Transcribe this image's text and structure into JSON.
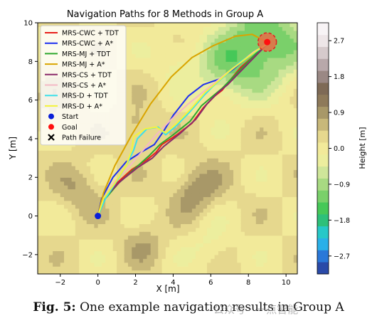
{
  "chart_data": {
    "type": "line",
    "title": "Navigation Paths for 8 Methods in Group A",
    "xlabel": "X [m]",
    "ylabel": "Y [m]",
    "xlim": [
      -3.2,
      10.6
    ],
    "ylim": [
      -3.0,
      10.0
    ],
    "xticks": [
      -2,
      0,
      2,
      4,
      6,
      8,
      10
    ],
    "yticks": [
      -2,
      0,
      2,
      4,
      6,
      8,
      10
    ],
    "grid": false,
    "legend_position": "top-left",
    "background": "contour-height-map",
    "series": [
      {
        "name": "MRS-CWC + TDT",
        "color": "#e8201c",
        "points": [
          [
            0,
            0
          ],
          [
            0.3,
            0.8
          ],
          [
            1.0,
            1.7
          ],
          [
            1.8,
            2.4
          ],
          [
            2.6,
            2.9
          ],
          [
            3.1,
            3.3
          ],
          [
            3.4,
            3.7
          ],
          [
            4.2,
            4.2
          ],
          [
            5.0,
            4.8
          ],
          [
            5.6,
            5.6
          ],
          [
            6.2,
            6.2
          ],
          [
            6.6,
            6.5
          ],
          [
            7.0,
            7.0
          ],
          [
            7.6,
            7.7
          ],
          [
            8.3,
            8.3
          ],
          [
            9.0,
            8.9
          ]
        ]
      },
      {
        "name": "MRS-CWC + A*",
        "color": "#1c2ff0",
        "points": [
          [
            0,
            0
          ],
          [
            0.2,
            0.9
          ],
          [
            0.8,
            2.0
          ],
          [
            1.5,
            2.8
          ],
          [
            2.3,
            3.3
          ],
          [
            3.0,
            3.7
          ],
          [
            3.5,
            4.4
          ],
          [
            4.0,
            5.2
          ],
          [
            4.8,
            6.2
          ],
          [
            5.6,
            6.8
          ],
          [
            6.5,
            7.1
          ],
          [
            7.2,
            7.6
          ],
          [
            7.9,
            8.2
          ],
          [
            8.5,
            8.6
          ],
          [
            9.0,
            8.9
          ]
        ]
      },
      {
        "name": "MRS-MJ + TDT",
        "color": "#2ea82e",
        "points": [
          [
            0,
            0
          ],
          [
            0.4,
            0.9
          ],
          [
            1.1,
            1.7
          ],
          [
            1.9,
            2.4
          ],
          [
            2.7,
            3.1
          ],
          [
            3.3,
            3.7
          ],
          [
            4.0,
            4.2
          ],
          [
            4.9,
            4.9
          ],
          [
            5.5,
            5.7
          ],
          [
            6.1,
            6.2
          ],
          [
            6.6,
            6.6
          ],
          [
            7.2,
            7.2
          ],
          [
            7.9,
            7.9
          ],
          [
            8.5,
            8.5
          ],
          [
            9.0,
            8.9
          ]
        ]
      },
      {
        "name": "MRS-MJ + A*",
        "color": "#d9a400",
        "points": [
          [
            0,
            0
          ],
          [
            0.3,
            1.2
          ],
          [
            0.9,
            2.6
          ],
          [
            1.8,
            4.2
          ],
          [
            2.8,
            5.8
          ],
          [
            3.9,
            7.2
          ],
          [
            5.0,
            8.2
          ],
          [
            6.1,
            8.8
          ],
          [
            7.3,
            9.3
          ],
          [
            8.2,
            9.4
          ],
          [
            9.0,
            9.0
          ]
        ]
      },
      {
        "name": "MRS-CS + TDT",
        "color": "#8a2a6a",
        "points": [
          [
            0,
            0
          ],
          [
            0.4,
            1.0
          ],
          [
            1.2,
            1.8
          ],
          [
            2.1,
            2.5
          ],
          [
            2.9,
            3.0
          ],
          [
            3.5,
            3.6
          ],
          [
            4.4,
            4.3
          ],
          [
            5.2,
            5.0
          ],
          [
            5.8,
            5.8
          ],
          [
            6.4,
            6.4
          ],
          [
            6.9,
            6.8
          ],
          [
            7.5,
            7.4
          ],
          [
            8.2,
            8.1
          ],
          [
            9.0,
            8.9
          ]
        ]
      },
      {
        "name": "MRS-CS + A*",
        "color": "#f4b8c4",
        "points": [
          [
            0,
            0
          ],
          [
            0.3,
            0.9
          ],
          [
            0.9,
            1.8
          ],
          [
            1.7,
            2.6
          ],
          [
            2.4,
            3.4
          ],
          [
            3.1,
            4.2
          ],
          [
            3.9,
            5.0
          ],
          [
            4.8,
            5.8
          ],
          [
            5.7,
            6.5
          ],
          [
            6.6,
            7.2
          ],
          [
            7.5,
            7.9
          ],
          [
            8.3,
            8.5
          ],
          [
            9.0,
            8.9
          ]
        ]
      },
      {
        "name": "MRS-D + TDT",
        "color": "#3ce0ea",
        "points": [
          [
            0,
            0
          ],
          [
            0.4,
            0.9
          ],
          [
            1.0,
            1.8
          ],
          [
            1.5,
            2.6
          ],
          [
            1.9,
            3.4
          ],
          [
            2.1,
            4.0
          ],
          [
            2.6,
            4.5
          ],
          [
            3.2,
            4.6
          ],
          [
            3.6,
            4.2
          ],
          [
            4.1,
            4.6
          ],
          [
            4.9,
            5.4
          ],
          [
            5.6,
            6.2
          ],
          [
            6.1,
            6.7
          ],
          [
            6.8,
            7.3
          ],
          [
            7.6,
            8.0
          ],
          [
            8.4,
            8.5
          ],
          [
            9.0,
            8.9
          ]
        ]
      },
      {
        "name": "MRS-D + A*",
        "color": "#f4f43a",
        "points": [
          [
            0,
            0
          ],
          [
            0.3,
            0.9
          ],
          [
            0.9,
            1.7
          ],
          [
            1.5,
            2.6
          ],
          [
            1.8,
            3.4
          ],
          [
            1.9,
            4.1
          ],
          [
            2.5,
            4.5
          ],
          [
            3.1,
            4.6
          ],
          [
            3.6,
            4.3
          ],
          [
            4.2,
            4.8
          ],
          [
            5.0,
            5.6
          ],
          [
            5.7,
            6.4
          ],
          [
            6.3,
            6.9
          ],
          [
            7.0,
            7.5
          ],
          [
            7.8,
            8.1
          ],
          [
            8.5,
            8.6
          ],
          [
            9.0,
            8.9
          ]
        ]
      }
    ],
    "markers": [
      {
        "name": "Start",
        "x": 0,
        "y": 0,
        "color": "#0a1fd8",
        "symbol": "circle"
      },
      {
        "name": "Goal",
        "x": 9,
        "y": 9,
        "color": "#ff1010",
        "symbol": "circle"
      },
      {
        "name": "Path Failure",
        "symbol": "x",
        "color": "#000000"
      }
    ],
    "colorbar": {
      "label": "Height [m]",
      "ticks": [
        {
          "value": 2.7,
          "label": "2.7"
        },
        {
          "value": 1.8,
          "label": "1.8"
        },
        {
          "value": 0.9,
          "label": "0.9"
        },
        {
          "value": 0.0,
          "label": "0.0"
        },
        {
          "value": -0.9,
          "label": "−0.9"
        },
        {
          "value": -1.8,
          "label": "−1.8"
        },
        {
          "value": -2.7,
          "label": "−2.7"
        }
      ],
      "range": [
        -3.15,
        3.15
      ],
      "colors": [
        "#2a4aa8",
        "#2a78d8",
        "#2ab0e8",
        "#27c8c8",
        "#2ec07a",
        "#46c858",
        "#7ad06a",
        "#a8da82",
        "#cfe69a",
        "#ecee9e",
        "#f2ea9a",
        "#e6d88e",
        "#c8b87a",
        "#a89868",
        "#8e7a5a",
        "#7e6a56",
        "#9a8884",
        "#b8a8aa",
        "#d6cacc",
        "#eee6e8",
        "#f8f4f6"
      ]
    }
  },
  "caption": {
    "label": "Fig. 5:",
    "text": "One example navigation results in Group A"
  },
  "watermark": "公众号 · 一点智能"
}
